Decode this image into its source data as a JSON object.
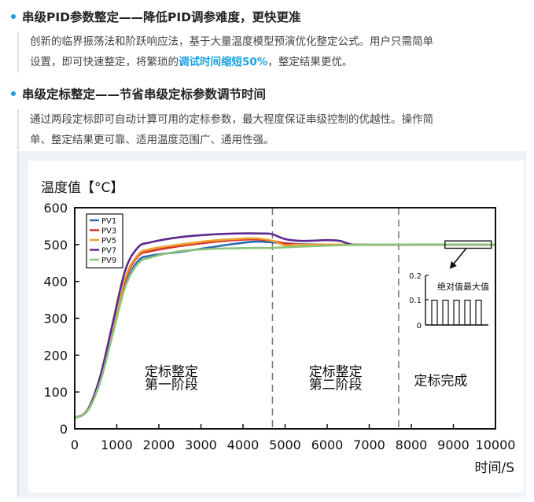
{
  "sections": [
    {
      "title": "串级PID参数整定——降低PID调参难度，更快更准",
      "line1": "创新的临界振荡法和阶跃响应法，基于大量温度模型预演优化整定公式。用户只需简单",
      "line2_pre": "设置，即可快速整定，将繁琐的",
      "line2_highlight": "调试时间缩短50%",
      "line2_post": "，整定结果更优。"
    },
    {
      "title": "串级定标整定——节省串级定标参数调节时间",
      "line1": "通过两段定标即可自动计算可用的定标参数，最大程度保证串级控制的优越性。操作简",
      "line2": "单、整定结果更可靠、适用温度范围广、通用性强。"
    }
  ],
  "chart_data": {
    "type": "line",
    "ylabel": "温度值【°C】",
    "xlabel": "时间/S",
    "xlim": [
      0,
      10000
    ],
    "ylim": [
      0,
      600
    ],
    "xticks": [
      0,
      1000,
      2000,
      3000,
      4000,
      5000,
      6000,
      7000,
      8000,
      9000,
      10000
    ],
    "yticks": [
      0,
      100,
      200,
      300,
      400,
      500,
      600
    ],
    "grid": false,
    "legend_position": "top-left",
    "phase_dividers": [
      4700,
      7700
    ],
    "phase_labels": [
      {
        "line1": "定标整定",
        "line2": "第一阶段",
        "x": 2300,
        "y1": 143,
        "y2": 108
      },
      {
        "line1": "定标整定",
        "line2": "第二阶段",
        "x": 6200,
        "y1": 143,
        "y2": 108
      },
      {
        "line1": "定标完成",
        "line2": "",
        "x": 8700,
        "y1": 118,
        "y2": 0
      }
    ],
    "series": [
      {
        "name": "PV1",
        "color": "#2b6cb0",
        "x": [
          0,
          300,
          600,
          900,
          1200,
          1500,
          1800,
          2500,
          3200,
          3800,
          4300,
          4700,
          5200,
          6000,
          7000,
          8000,
          10000
        ],
        "y": [
          30,
          50,
          130,
          260,
          390,
          455,
          470,
          480,
          492,
          502,
          508,
          506,
          502,
          500,
          500,
          500,
          500
        ]
      },
      {
        "name": "PV3",
        "color": "#d62d2d",
        "x": [
          0,
          300,
          600,
          900,
          1200,
          1500,
          1800,
          2500,
          3200,
          3800,
          4300,
          4700,
          5000,
          5500,
          7000,
          10000
        ],
        "y": [
          30,
          50,
          135,
          270,
          405,
          468,
          482,
          496,
          506,
          512,
          514,
          510,
          503,
          500,
          500,
          500
        ]
      },
      {
        "name": "PV5",
        "color": "#f0a030",
        "x": [
          0,
          300,
          600,
          900,
          1200,
          1500,
          1800,
          2500,
          3200,
          3800,
          4300,
          4700,
          5000,
          5400,
          7000,
          10000
        ],
        "y": [
          30,
          50,
          135,
          272,
          410,
          472,
          488,
          500,
          510,
          515,
          517,
          510,
          498,
          500,
          500,
          500
        ]
      },
      {
        "name": "PV7",
        "color": "#5b2a8c",
        "x": [
          0,
          300,
          600,
          900,
          1200,
          1500,
          1800,
          2500,
          3200,
          3800,
          4500,
          4700,
          5000,
          5400,
          6000,
          6300,
          6600,
          7000,
          10000
        ],
        "y": [
          30,
          50,
          140,
          285,
          430,
          492,
          506,
          520,
          527,
          530,
          530,
          528,
          515,
          510,
          512,
          510,
          500,
          500,
          500
        ]
      },
      {
        "name": "PV9",
        "color": "#8bc37a",
        "x": [
          0,
          300,
          600,
          900,
          1200,
          1500,
          1800,
          2500,
          3200,
          3800,
          4300,
          4700,
          5500,
          7000,
          10000
        ],
        "y": [
          30,
          48,
          125,
          255,
          385,
          448,
          465,
          482,
          488,
          490,
          491,
          491,
          495,
          500,
          500
        ]
      }
    ],
    "annotation_box": {
      "x0": 8800,
      "x1": 9900,
      "y0": 490,
      "y1": 510
    },
    "inset": {
      "label": "绝对值最大值",
      "yticks": [
        "0.2",
        "0.1",
        "0"
      ],
      "bars": [
        0.1,
        0.1,
        0.1,
        0.1,
        0.1
      ]
    }
  }
}
